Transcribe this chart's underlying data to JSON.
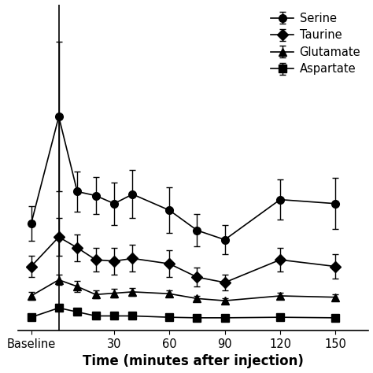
{
  "serine": {
    "label": "Serine",
    "marker": "o",
    "x": [
      -15,
      0,
      10,
      20,
      30,
      40,
      60,
      75,
      90,
      120,
      150
    ],
    "y": [
      380,
      780,
      500,
      485,
      455,
      490,
      430,
      355,
      320,
      470,
      455
    ],
    "yerr": [
      65,
      280,
      75,
      70,
      80,
      90,
      85,
      60,
      55,
      75,
      95
    ]
  },
  "taurine": {
    "label": "Taurine",
    "marker": "D",
    "x": [
      -15,
      0,
      10,
      20,
      30,
      40,
      60,
      75,
      90,
      120,
      150
    ],
    "y": [
      220,
      330,
      290,
      245,
      240,
      250,
      230,
      180,
      160,
      245,
      220
    ],
    "yerr": [
      40,
      70,
      50,
      45,
      50,
      50,
      50,
      35,
      30,
      45,
      45
    ]
  },
  "glutamate": {
    "label": "Glutamate",
    "marker": "^",
    "x": [
      -15,
      0,
      10,
      20,
      30,
      40,
      60,
      75,
      90,
      120,
      150
    ],
    "y": [
      110,
      170,
      145,
      115,
      120,
      125,
      118,
      100,
      92,
      110,
      105
    ],
    "yerr": [
      15,
      20,
      20,
      15,
      15,
      15,
      12,
      10,
      10,
      12,
      12
    ]
  },
  "aspartate": {
    "label": "Aspartate",
    "marker": "s",
    "x": [
      -15,
      0,
      10,
      20,
      30,
      40,
      60,
      75,
      90,
      120,
      150
    ],
    "y": [
      30,
      65,
      50,
      35,
      35,
      35,
      30,
      28,
      28,
      30,
      28
    ],
    "yerr": [
      5,
      8,
      7,
      5,
      5,
      5,
      4,
      4,
      4,
      4,
      4
    ]
  },
  "xlabel": "Time (minutes after injection)",
  "background_color": "#ffffff",
  "line_color": "#000000",
  "injection_x": 0,
  "xlim": [
    -22,
    168
  ],
  "ylim": [
    -20,
    1200
  ],
  "xtick_positions": [
    -15,
    30,
    60,
    90,
    120,
    150
  ],
  "xtick_labels": [
    "Baseline",
    "30",
    "60",
    "90",
    "120",
    "150"
  ]
}
